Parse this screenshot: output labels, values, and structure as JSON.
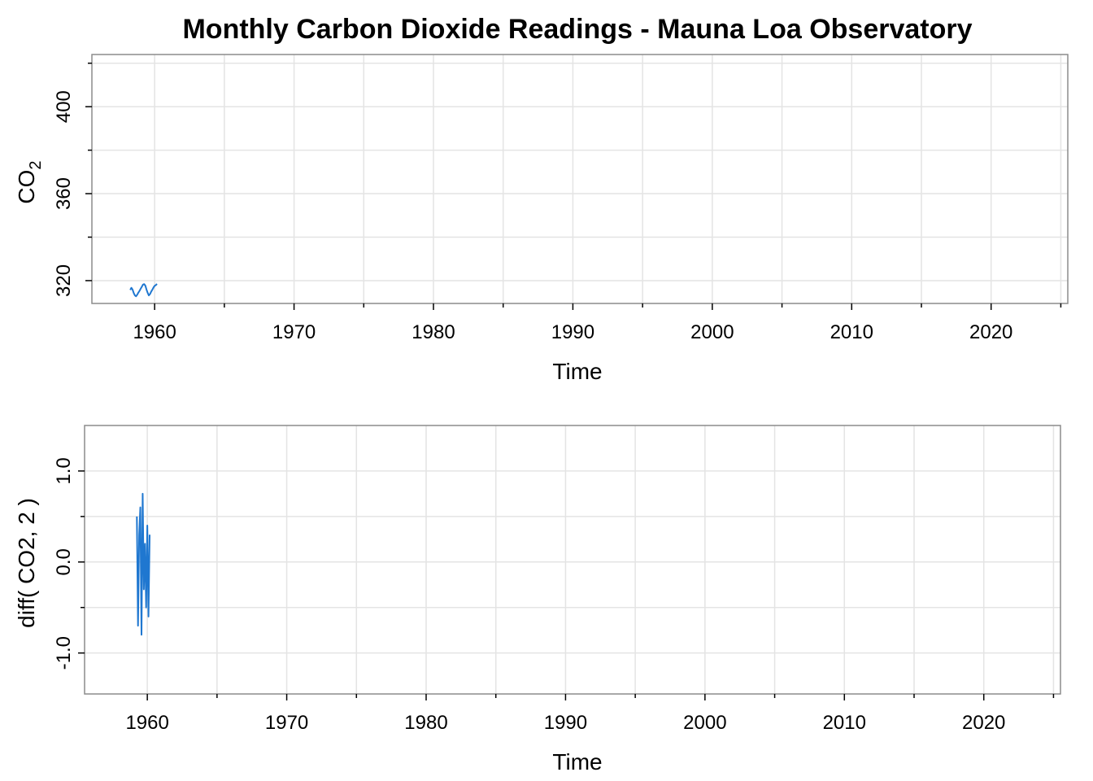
{
  "chart_data": [
    {
      "type": "line",
      "title": "Monthly Carbon Dioxide Readings - Mauna Loa Observatory",
      "xlabel": "Time",
      "ylabel": "CO",
      "ylabel_subscript": "2",
      "xlim": [
        1955.5,
        2025.5
      ],
      "ylim": [
        309.5,
        424
      ],
      "x_ticks": [
        1960,
        1970,
        1980,
        1990,
        2000,
        2010,
        2020
      ],
      "x_minor_ticks": [
        1955,
        1965,
        1975,
        1985,
        1995,
        2005,
        2015,
        2025
      ],
      "x_tick_labels": [
        "1960",
        "1970",
        "1980",
        "1990",
        "2000",
        "2010",
        "2020"
      ],
      "y_ticks": [
        320,
        360,
        400
      ],
      "y_minor_ticks": [
        300,
        340,
        380,
        420
      ],
      "y_tick_labels": [
        "320",
        "360",
        "400"
      ],
      "grid": true,
      "color": "#1f77d0",
      "series": [
        {
          "x_start": 1958.25,
          "step": 1,
          "values": [
            315.7,
            316.7,
            315.9,
            314.3,
            313.2,
            312.8,
            313.5,
            314.5,
            315.3,
            316.3,
            317.2,
            318.2,
            318.4,
            317.7,
            315.9,
            314.4,
            313.2,
            313.8,
            314.9,
            315.8,
            316.8,
            317.6,
            317.9,
            318.5
          ]
        }
      ]
    },
    {
      "type": "line",
      "title": "",
      "xlabel": "Time",
      "ylabel": "diff( CO2, 2 )",
      "xlim": [
        1955.5,
        2025.5
      ],
      "ylim": [
        -1.45,
        1.5
      ],
      "x_ticks": [
        1960,
        1970,
        1980,
        1990,
        2000,
        2010,
        2020
      ],
      "x_minor_ticks": [
        1955,
        1965,
        1975,
        1985,
        1995,
        2005,
        2015,
        2025
      ],
      "x_tick_labels": [
        "1960",
        "1970",
        "1980",
        "1990",
        "2000",
        "2010",
        "2020"
      ],
      "y_ticks": [
        -1.0,
        0.0,
        1.0
      ],
      "y_minor_ticks": [
        -0.5,
        0.5
      ],
      "y_tick_labels": [
        "-1.0",
        "0.0",
        "1.0"
      ],
      "grid": true,
      "color": "#1f77d0",
      "series": [
        {
          "x_start": 1959.25,
          "step": 1,
          "values": [
            0.5,
            -0.7,
            0.3,
            0.6,
            -0.8,
            0.75,
            -0.3,
            0.2,
            -0.5,
            0.4,
            -0.6,
            0.3
          ]
        }
      ]
    }
  ]
}
